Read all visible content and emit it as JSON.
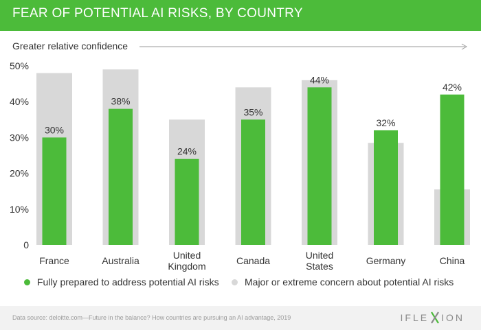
{
  "header": {
    "title": "FEAR OF POTENTIAL AI RISKS, BY COUNTRY"
  },
  "axis_note": {
    "label": "Greater relative confidence"
  },
  "legend": {
    "prepared_label": "Fully prepared to address potential AI risks",
    "concern_label": "Major or extreme concern about potential AI risks"
  },
  "footer": {
    "source": "Data source: deloitte.com—Future in the balance? How countries are pursuing an AI advantage, 2019",
    "logo_left": "IFLE",
    "logo_right": "ION",
    "logo_mark_letter": "X"
  },
  "colors": {
    "green": "#4cbb3a",
    "gray": "#d8d8d8",
    "header": "#4cbb3a"
  },
  "chart_data": {
    "type": "bar",
    "title": "FEAR OF POTENTIAL AI RISKS, BY COUNTRY",
    "categories": [
      "France",
      "Australia",
      "United Kingdom",
      "Canada",
      "United States",
      "Germany",
      "China"
    ],
    "category_lines": [
      [
        "France"
      ],
      [
        "Australia"
      ],
      [
        "United",
        "Kingdom"
      ],
      [
        "Canada"
      ],
      [
        "United",
        "States"
      ],
      [
        "Germany"
      ],
      [
        "China"
      ]
    ],
    "series": [
      {
        "name": "Fully prepared to address potential AI risks",
        "values": [
          30,
          38,
          24,
          35,
          44,
          32,
          42
        ],
        "labels": [
          "30%",
          "38%",
          "24%",
          "35%",
          "44%",
          "32%",
          "42%"
        ]
      },
      {
        "name": "Major or extreme concern about potential AI risks",
        "values": [
          48,
          49,
          35,
          44,
          46,
          28.5,
          15.5
        ]
      }
    ],
    "yticks": [
      0,
      10,
      20,
      30,
      40,
      50
    ],
    "ytick_labels": [
      "0",
      "10%",
      "20%",
      "30%",
      "40%",
      "50%"
    ],
    "ylim": [
      0,
      50
    ],
    "xlabel": "",
    "ylabel": "",
    "grid": false,
    "legend": "bottom"
  }
}
